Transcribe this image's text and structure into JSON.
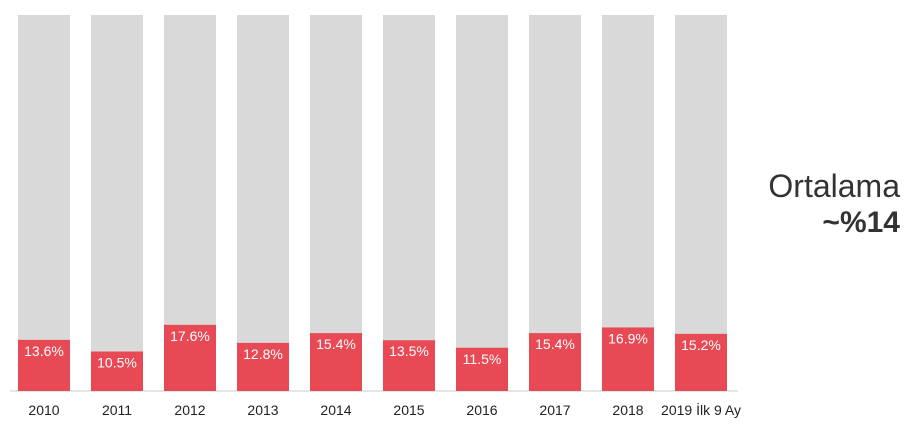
{
  "chart_data": {
    "type": "bar",
    "stacked_percent": true,
    "categories": [
      "2010",
      "2011",
      "2012",
      "2013",
      "2014",
      "2015",
      "2016",
      "2017",
      "2018",
      "2019 İlk 9 Ay"
    ],
    "values": [
      13.6,
      10.5,
      17.6,
      12.8,
      15.4,
      13.5,
      11.5,
      15.4,
      16.9,
      15.2
    ],
    "value_labels": [
      "13.6%",
      "10.5%",
      "17.6%",
      "12.8%",
      "15.4%",
      "13.5%",
      "11.5%",
      "15.4%",
      "16.9%",
      "15.2%"
    ],
    "ylim": [
      0,
      100
    ],
    "grid": false,
    "colors": {
      "value": "#e84a55",
      "remainder": "#d9d9d9",
      "axis": "#cccccc"
    }
  },
  "summary": {
    "label": "Ortalama",
    "value": "~%14"
  }
}
